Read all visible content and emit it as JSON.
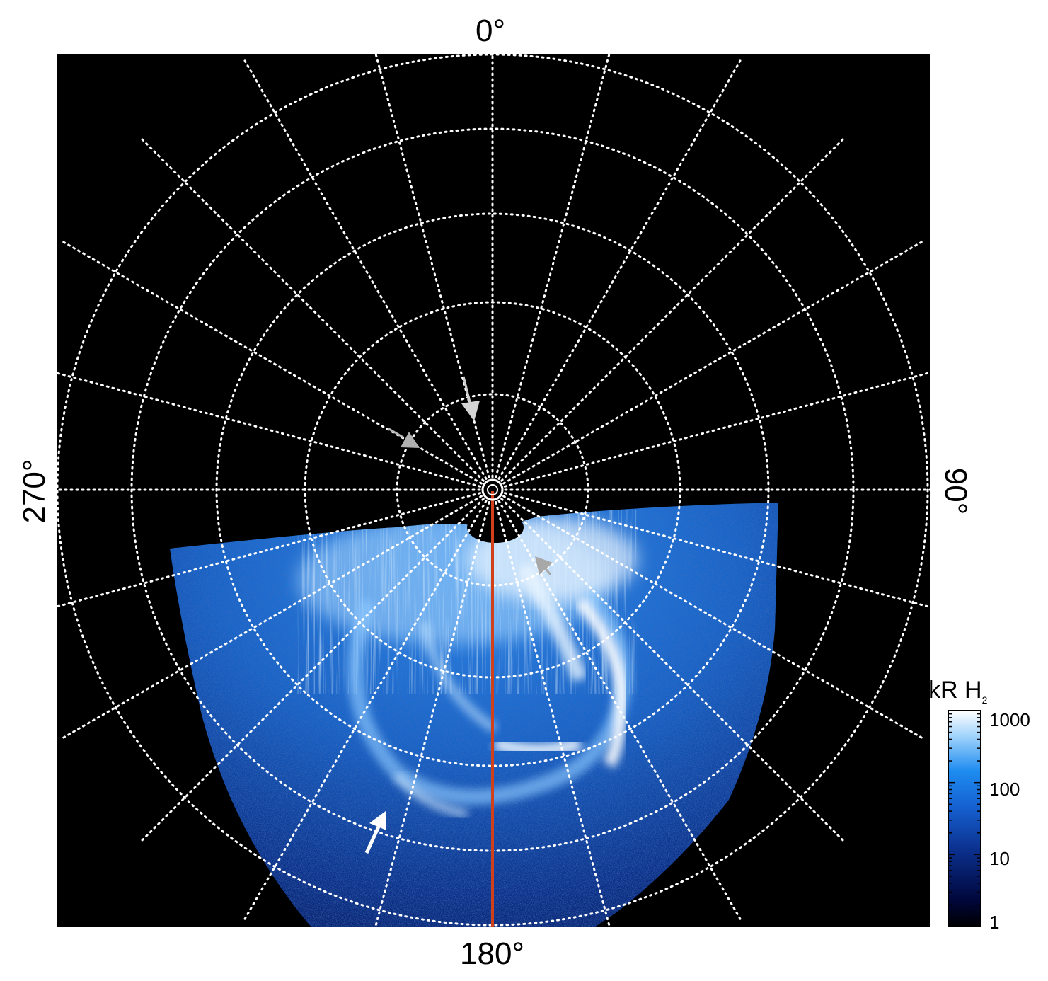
{
  "figure": {
    "longitude_labels": {
      "top": "0°",
      "right": "90°",
      "bottom": "180°",
      "left": "270°"
    },
    "colors": {
      "background": "#000000",
      "grid": "#ffffff",
      "meridian_line": "#d0401a",
      "emission_low": "#000a40",
      "emission_mid": "#1e7de6",
      "emission_high": "#f4fbff",
      "arrow_white": "#ffffff",
      "arrow_gray": "#b4b4b4"
    },
    "grid": {
      "style": "dotted",
      "meridian_spacing_deg": 15
    },
    "annotations": [
      {
        "name": "white-arrow",
        "color": "white"
      },
      {
        "name": "gray-arrow-upper",
        "color": "gray"
      },
      {
        "name": "gray-arrow-left",
        "color": "gray"
      },
      {
        "name": "gray-arrow-right",
        "color": "gray"
      }
    ]
  },
  "colorbar": {
    "title_text": "kR H",
    "title_subscript": "2",
    "scale": "log",
    "range": [
      1,
      1000
    ],
    "tick_labels": [
      "1000",
      "100",
      "10",
      "1"
    ]
  }
}
